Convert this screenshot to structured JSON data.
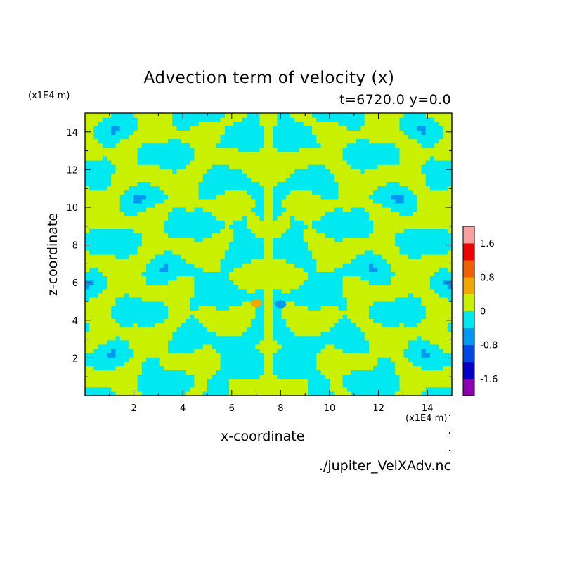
{
  "chart_data": {
    "type": "heatmap",
    "title": "Advection term of velocity (x)",
    "subtitle": "t=6720.0 y=0.0",
    "xlabel": "x-coordinate",
    "ylabel": "z-coordinate",
    "x_unit": "(x1E4 m)",
    "y_unit": "(x1E4 m)",
    "xlim": [
      0,
      15
    ],
    "ylim": [
      0,
      15
    ],
    "x_ticks": [
      2,
      4,
      6,
      8,
      10,
      12,
      14
    ],
    "y_ticks": [
      2,
      4,
      6,
      8,
      10,
      12,
      14
    ],
    "colorbar": {
      "levels": [
        -2.0,
        -1.6,
        -1.2,
        -0.8,
        -0.4,
        0,
        0.4,
        0.8,
        1.2,
        1.6,
        2.0
      ],
      "colors": [
        "#8a00b0",
        "#0000c8",
        "#0048e6",
        "#0098f0",
        "#00e8f0",
        "#c8f000",
        "#f0a800",
        "#f06000",
        "#f00000",
        "#f8a0a0"
      ],
      "tick_labels": [
        {
          "value": 1.6,
          "label": "1.6"
        },
        {
          "value": 0.8,
          "label": "0.8"
        },
        {
          "value": 0,
          "label": "0"
        },
        {
          "value": -0.8,
          "label": "-0.8"
        },
        {
          "value": -1.6,
          "label": "-1.6"
        }
      ]
    },
    "features": [
      {
        "x": 7.0,
        "z": 4.9,
        "value": 0.6
      },
      {
        "x": 8.0,
        "z": 4.85,
        "value": -0.6
      }
    ]
  },
  "footer": {
    "filename": "./jupiter_VelXAdv.nc"
  }
}
